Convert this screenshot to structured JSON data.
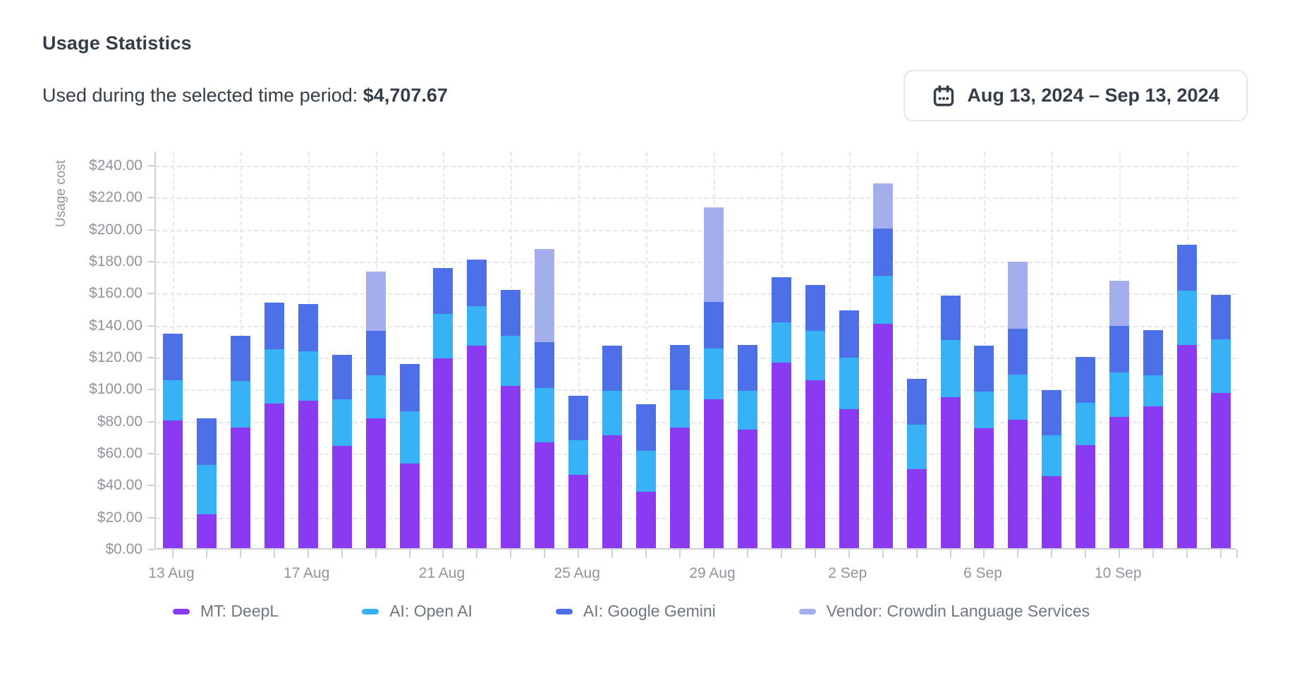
{
  "header": {
    "title": "Usage Statistics",
    "subtitle_label": "Used during the selected time period:",
    "subtitle_value": "$4,707.67"
  },
  "date_picker": {
    "icon": "calendar-icon",
    "label": "Aug 13, 2024 – Sep 13, 2024"
  },
  "colors": {
    "deepl": "#8a3bf2",
    "openai": "#38b2f7",
    "gemini": "#4d6fe8",
    "vendor": "#a5aeec",
    "grid": "#e5e7ea",
    "axis": "#cdd1d6",
    "axis_text": "#8f959e",
    "legend_text": "#6e7780",
    "heading_text": "#333e48"
  },
  "chart_data": {
    "type": "bar",
    "stacked": true,
    "ylabel": "Usage cost",
    "currency": "USD",
    "grid": true,
    "legend_position": "bottom",
    "ylim": [
      0,
      248
    ],
    "y_tick_step": 20,
    "y_ticks": [
      "$0.00",
      "$20.00",
      "$40.00",
      "$60.00",
      "$80.00",
      "$100.00",
      "$120.00",
      "$140.00",
      "$160.00",
      "$180.00",
      "$200.00",
      "$220.00",
      "$240.00"
    ],
    "x_tick_labels_shown": [
      "13 Aug",
      "17 Aug",
      "21 Aug",
      "25 Aug",
      "29 Aug",
      "2 Sep",
      "6 Sep",
      "10 Sep"
    ],
    "x_label_every": 4,
    "vgrid_every": 2,
    "categories": [
      "13 Aug",
      "14 Aug",
      "15 Aug",
      "16 Aug",
      "17 Aug",
      "18 Aug",
      "19 Aug",
      "20 Aug",
      "21 Aug",
      "22 Aug",
      "23 Aug",
      "24 Aug",
      "25 Aug",
      "26 Aug",
      "27 Aug",
      "28 Aug",
      "29 Aug",
      "30 Aug",
      "31 Aug",
      "1 Sep",
      "2 Sep",
      "3 Sep",
      "4 Sep",
      "5 Sep",
      "6 Sep",
      "7 Sep",
      "8 Sep",
      "9 Sep",
      "10 Sep",
      "11 Sep",
      "12 Sep",
      "13 Sep"
    ],
    "series": [
      {
        "name": "MT: DeepL",
        "color": "#8a3bf2",
        "values": [
          80,
          21,
          75.5,
          90.5,
          92,
          64,
          81,
          53,
          118.5,
          126.5,
          101.5,
          66,
          46,
          70.5,
          35.5,
          75.5,
          93,
          74,
          116,
          105,
          87,
          140.5,
          49.5,
          94.5,
          75,
          80.5,
          45,
          64.5,
          82,
          88.5,
          127,
          97
        ]
      },
      {
        "name": "AI: Open AI",
        "color": "#38b2f7",
        "values": [
          25,
          31,
          29,
          34,
          31,
          29,
          27,
          32.5,
          28,
          25,
          31.5,
          34,
          21.5,
          28,
          25.5,
          23.5,
          32,
          24.5,
          25,
          31,
          32,
          30,
          27.5,
          35.5,
          23,
          28,
          25.5,
          26.5,
          28,
          19.5,
          34,
          33.5
        ]
      },
      {
        "name": "AI: Google Gemini",
        "color": "#4d6fe8",
        "values": [
          29,
          29,
          28.5,
          29,
          29.5,
          28,
          28,
          29.5,
          28.5,
          29,
          28.5,
          29,
          28,
          28,
          29,
          28,
          29,
          28.5,
          28.5,
          28.5,
          29.5,
          29.5,
          29,
          28,
          28.5,
          28.5,
          28.5,
          28.5,
          29,
          28.5,
          28.5,
          28
        ]
      },
      {
        "name": "Vendor: Crowdin Language Services",
        "color": "#a5aeec",
        "values": [
          0,
          0,
          0,
          0,
          0,
          0,
          37,
          0,
          0,
          0,
          0,
          58,
          0,
          0,
          0,
          0,
          59,
          0,
          0,
          0,
          0,
          28,
          0,
          0,
          0,
          42,
          0,
          0,
          28,
          0,
          0,
          0
        ]
      }
    ]
  }
}
